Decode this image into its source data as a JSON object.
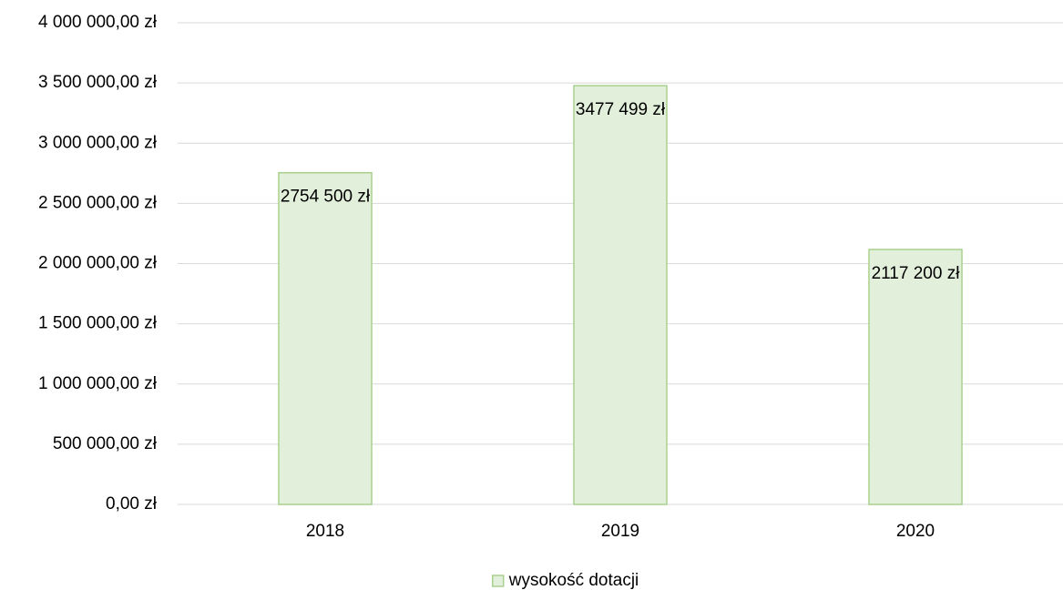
{
  "chart_data": {
    "type": "bar",
    "categories": [
      "2018",
      "2019",
      "2020"
    ],
    "series": [
      {
        "name": "wysokość dotacji",
        "color": "#e2efda",
        "border_color": "#a9d18e",
        "values": [
          2754500,
          3477499,
          2117200
        ],
        "value_labels": [
          "2754 500 zł",
          "3477 499 zł",
          "2117 200 zł"
        ]
      }
    ],
    "ylim": [
      0,
      4000000
    ],
    "yticks": [
      {
        "value": 0,
        "label": "0,00 zł"
      },
      {
        "value": 500000,
        "label": "500 000,00 zł"
      },
      {
        "value": 1000000,
        "label": "1 000 000,00 zł"
      },
      {
        "value": 1500000,
        "label": "1 500 000,00 zł"
      },
      {
        "value": 2000000,
        "label": "2 000 000,00 zł"
      },
      {
        "value": 2500000,
        "label": "2 500 000,00 zł"
      },
      {
        "value": 3000000,
        "label": "3 000 000,00 zł"
      },
      {
        "value": 3500000,
        "label": "3 500 000,00 zł"
      },
      {
        "value": 4000000,
        "label": "4 000 000,00 zł"
      }
    ],
    "grid": true,
    "legend": "bottom"
  }
}
